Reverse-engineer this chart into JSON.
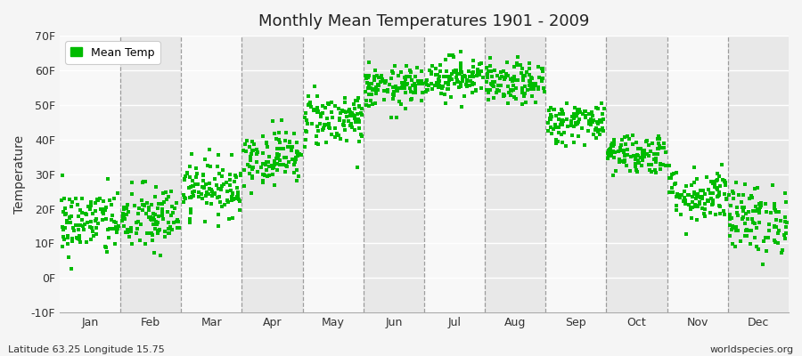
{
  "title": "Monthly Mean Temperatures 1901 - 2009",
  "ylabel": "Temperature",
  "subtitle_left": "Latitude 63.25 Longitude 15.75",
  "subtitle_right": "worldspecies.org",
  "legend_label": "Mean Temp",
  "dot_color": "#00bb00",
  "bg_color": "#f5f5f5",
  "plot_bg_color": "#f0f0f0",
  "stripe_color_light": "#f8f8f8",
  "stripe_color_dark": "#e8e8e8",
  "ylim": [
    -10,
    70
  ],
  "yticks": [
    -10,
    0,
    10,
    20,
    30,
    40,
    50,
    60,
    70
  ],
  "ytick_labels": [
    "-10F",
    "0F",
    "10F",
    "20F",
    "30F",
    "40F",
    "50F",
    "60F",
    "70F"
  ],
  "months": [
    "Jan",
    "Feb",
    "Mar",
    "Apr",
    "May",
    "Jun",
    "Jul",
    "Aug",
    "Sep",
    "Oct",
    "Nov",
    "Dec"
  ],
  "month_means_F": [
    16,
    17,
    26,
    35,
    46,
    55,
    58,
    56,
    45,
    36,
    24,
    17
  ],
  "month_stds_F": [
    5,
    5,
    4,
    4,
    4,
    3,
    3,
    3,
    3,
    3,
    4,
    5
  ],
  "n_years": 109,
  "seed": 42
}
